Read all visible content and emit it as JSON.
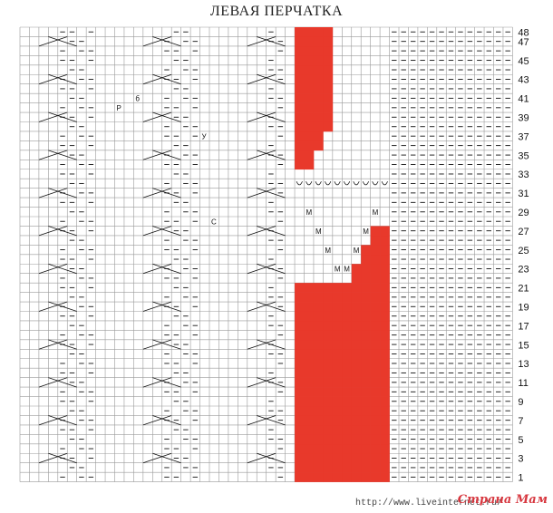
{
  "title": "ЛЕВАЯ ПЕРЧАТКА",
  "chart": {
    "rows": 48,
    "columns": 52,
    "row_labels": [
      "48",
      "47",
      "45",
      "43",
      "41",
      "39",
      "37",
      "35",
      "33",
      "31",
      "29",
      "27",
      "25",
      "23",
      "21",
      "19",
      "17",
      "15",
      "13",
      "11",
      "9",
      "7",
      "5",
      "3",
      "1"
    ],
    "colors": {
      "grid": "#9a9a9a",
      "red": "#e8392b",
      "ink": "#111111"
    },
    "red_band": {
      "col_start": 29,
      "col_end": 38,
      "top_row": 48
    },
    "cast_on_row": 31,
    "marker_symbol": "M",
    "bonus_symbols": [
      "P",
      "У",
      "б",
      "С"
    ]
  },
  "footer": {
    "url": "http://www.liveinternet.ru/",
    "watermark": "Страна Мам"
  }
}
